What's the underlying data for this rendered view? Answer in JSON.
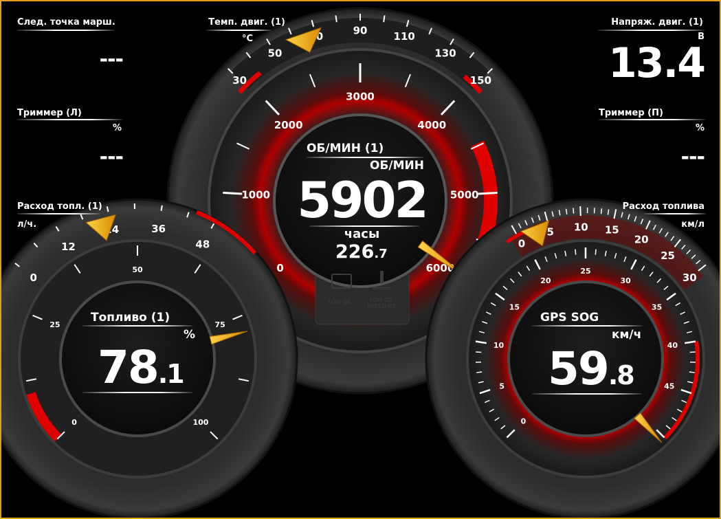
{
  "colors": {
    "border": "#e3a21a",
    "needle": "#f5b400",
    "red": "#e00000",
    "tick": "#ffffff"
  },
  "next_waypoint": {
    "label": "След. точка марш.",
    "value": "---"
  },
  "trim_left": {
    "label": "Триммер (Л)",
    "unit": "%",
    "value": "---"
  },
  "fuel_rate": {
    "label": "Расход топл. (1)",
    "unit": "л/ч.",
    "scale": [
      "0",
      "12",
      "24",
      "36",
      "48"
    ],
    "value": 22
  },
  "engine_voltage": {
    "label": "Напряж. двиг. (1)",
    "unit": "В",
    "value": "13.4"
  },
  "trim_right": {
    "label": "Триммер (П)",
    "unit": "%",
    "value": "---"
  },
  "fuel_economy": {
    "label": "Расход топлива",
    "unit": "км/л",
    "scale": [
      "0",
      "5",
      "10",
      "15",
      "20",
      "25",
      "30"
    ],
    "value": 3
  },
  "engine_temp": {
    "label": "Темп. двиг. (1)",
    "unit": "°C",
    "scale": [
      "30",
      "50",
      "70",
      "90",
      "110",
      "130",
      "150"
    ],
    "value": 65
  },
  "rpm": {
    "title": "ОБ/МИН (1)",
    "unit": "ОБ/МИН",
    "value": "5902",
    "value_num": 5902,
    "hours_label": "часы",
    "hours_int": "226",
    "hours_dec": ".7",
    "scale": [
      "0",
      "1000",
      "2000",
      "3000",
      "4000",
      "5000",
      "6000"
    ]
  },
  "warnings": [
    {
      "name": "check-engine-icon",
      "text": ""
    },
    {
      "name": "coolant-temp-icon",
      "text": ""
    },
    {
      "name": "low-oil-icon",
      "text": "LOW OIL"
    },
    {
      "name": "low-oil-pressure-icon",
      "text": "LOW OIL PRESSURE"
    }
  ],
  "fuel_level": {
    "title": "Топливо (1)",
    "unit": "%",
    "value_int": "78",
    "value_dec": ".1",
    "value_num": 78.1,
    "scale": [
      "0",
      "25",
      "50",
      "75",
      "100"
    ]
  },
  "gps_sog": {
    "title": "GPS SOG",
    "unit": "км/ч",
    "value_int": "59",
    "value_dec": ".8",
    "value_num": 59.8,
    "scale": [
      "0",
      "5",
      "10",
      "15",
      "20",
      "25",
      "30",
      "35",
      "40",
      "45"
    ]
  }
}
